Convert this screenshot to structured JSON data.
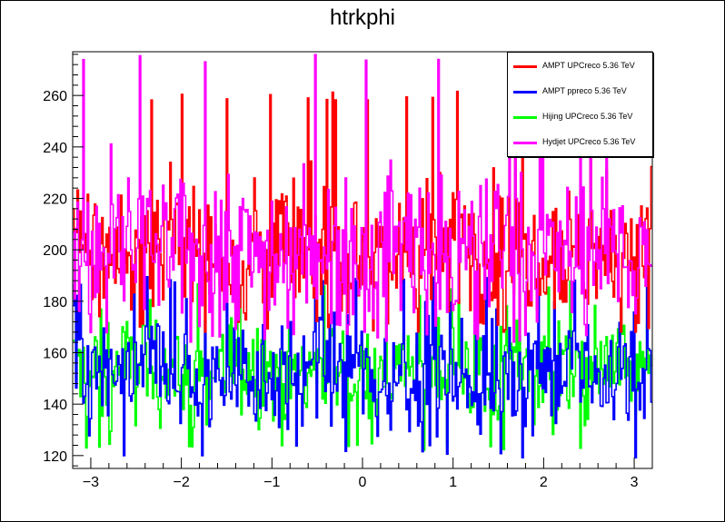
{
  "chart_data": {
    "type": "line",
    "title": "htrkphi",
    "xlabel": "",
    "ylabel": "",
    "xlim": [
      -3.2,
      3.2
    ],
    "ylim": [
      115,
      277
    ],
    "x_ticks": [
      -3,
      -2,
      -1,
      0,
      1,
      2,
      3
    ],
    "y_ticks": [
      120,
      140,
      160,
      180,
      200,
      220,
      240,
      260
    ],
    "legend_position": "top-right",
    "grid": false,
    "n_bins": 400,
    "series": [
      {
        "name": "AMPT UPCreco 5.36 TeV",
        "color": "#ff0000",
        "mean": 200,
        "spread": 14,
        "min": 168,
        "max": 262
      },
      {
        "name": "AMPT ppreco 5.36 TeV",
        "color": "#0000ff",
        "mean": 152,
        "spread": 12,
        "min": 118,
        "max": 190
      },
      {
        "name": "Hijing UPCreco 5.36 TeV",
        "color": "#00ff00",
        "mean": 154,
        "spread": 11,
        "min": 122,
        "max": 188
      },
      {
        "name": "Hydjet UPCreco 5.36 TeV",
        "color": "#ff00ff",
        "mean": 200,
        "spread": 15,
        "min": 164,
        "max": 277
      }
    ],
    "draw_order": [
      2,
      1,
      0,
      3
    ]
  }
}
